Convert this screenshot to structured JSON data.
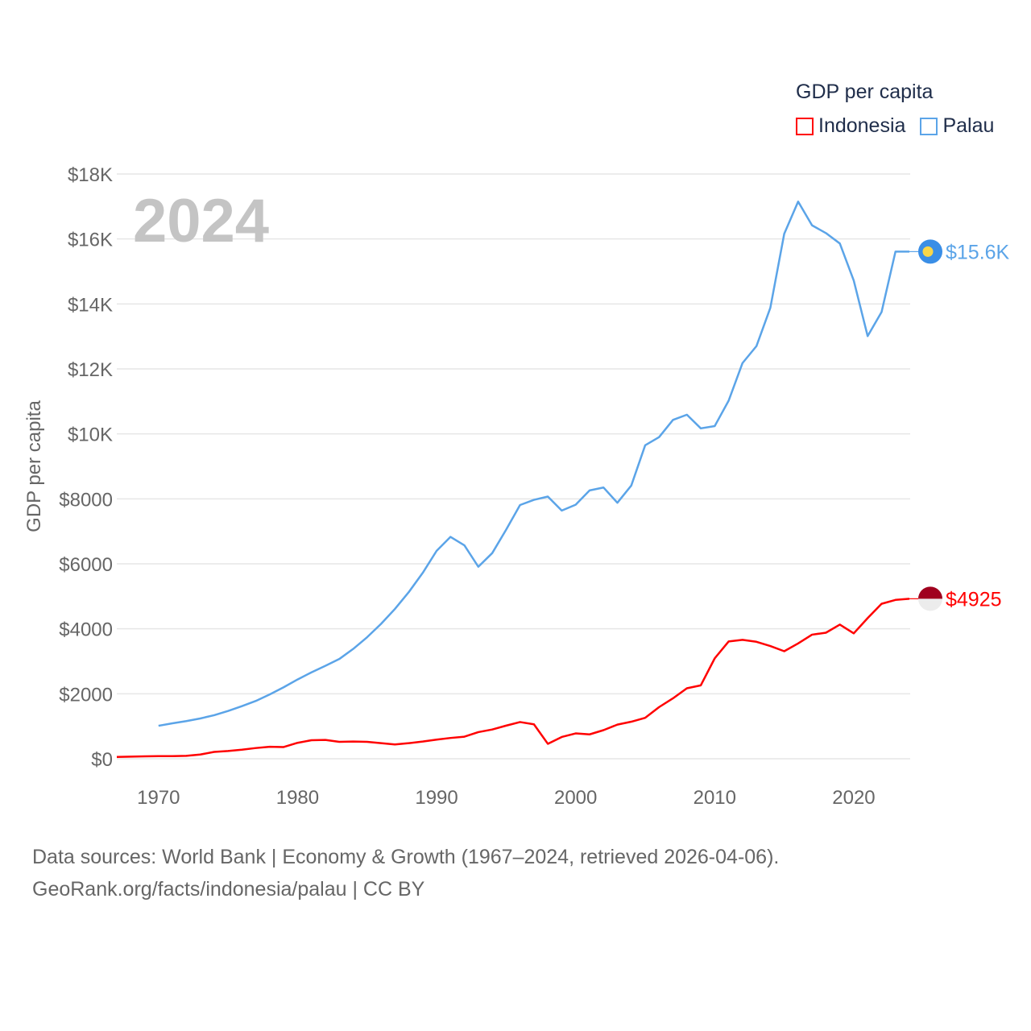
{
  "legend": {
    "title": "GDP per capita",
    "items": [
      {
        "label": "Indonesia",
        "color": "#ff0000"
      },
      {
        "label": "Palau",
        "color": "#5ba4e8"
      }
    ]
  },
  "year_overlay": "2024",
  "footer": {
    "line1": "Data sources: World Bank | Economy & Growth (1967–2024, retrieved 2026-04-06).",
    "line2": "GeoRank.org/facts/indonesia/palau | CC BY"
  },
  "chart_data": {
    "type": "line",
    "title": "GDP per capita",
    "xlabel": "",
    "ylabel": "GDP per capita",
    "xlim": [
      1967,
      2024
    ],
    "ylim": [
      0,
      18000
    ],
    "xticks": [
      1970,
      1980,
      1990,
      2000,
      2010,
      2020
    ],
    "yticks": [
      0,
      2000,
      4000,
      6000,
      8000,
      10000,
      12000,
      14000,
      16000,
      18000
    ],
    "ytick_labels": [
      "$0",
      "$2000",
      "$4000",
      "$6000",
      "$8000",
      "$10K",
      "$12K",
      "$14K",
      "$16K",
      "$18K"
    ],
    "grid": true,
    "legend_position": "top-right",
    "series": [
      {
        "name": "Indonesia",
        "color": "#ff0000",
        "end_label": "$4925",
        "start_year": 1967,
        "values": [
          55,
          65,
          75,
          80,
          80,
          90,
          130,
          210,
          240,
          280,
          330,
          370,
          360,
          490,
          570,
          580,
          520,
          530,
          520,
          480,
          440,
          480,
          530,
          590,
          640,
          680,
          820,
          900,
          1020,
          1130,
          1060,
          460,
          670,
          780,
          750,
          880,
          1050,
          1140,
          1260,
          1590,
          1860,
          2170,
          2260,
          3090,
          3610,
          3660,
          3600,
          3470,
          3310,
          3550,
          3820,
          3880,
          4130,
          3860,
          4330,
          4770,
          4890,
          4925
        ]
      },
      {
        "name": "Palau",
        "color": "#5ba4e8",
        "end_label": "$15.6K",
        "start_year": 1970,
        "values": [
          1015,
          1090,
          1160,
          1240,
          1340,
          1470,
          1620,
          1780,
          1980,
          2200,
          2440,
          2660,
          2860,
          3070,
          3380,
          3740,
          4150,
          4610,
          5130,
          5720,
          6400,
          6830,
          6570,
          5910,
          6330,
          7050,
          7810,
          7970,
          8070,
          7640,
          7820,
          8260,
          8350,
          7880,
          8410,
          9650,
          9900,
          10430,
          10590,
          10170,
          10240,
          11020,
          12180,
          12700,
          13880,
          16160,
          17150,
          16420,
          16180,
          15860,
          14720,
          13010,
          13750,
          15610,
          15610
        ]
      }
    ]
  }
}
